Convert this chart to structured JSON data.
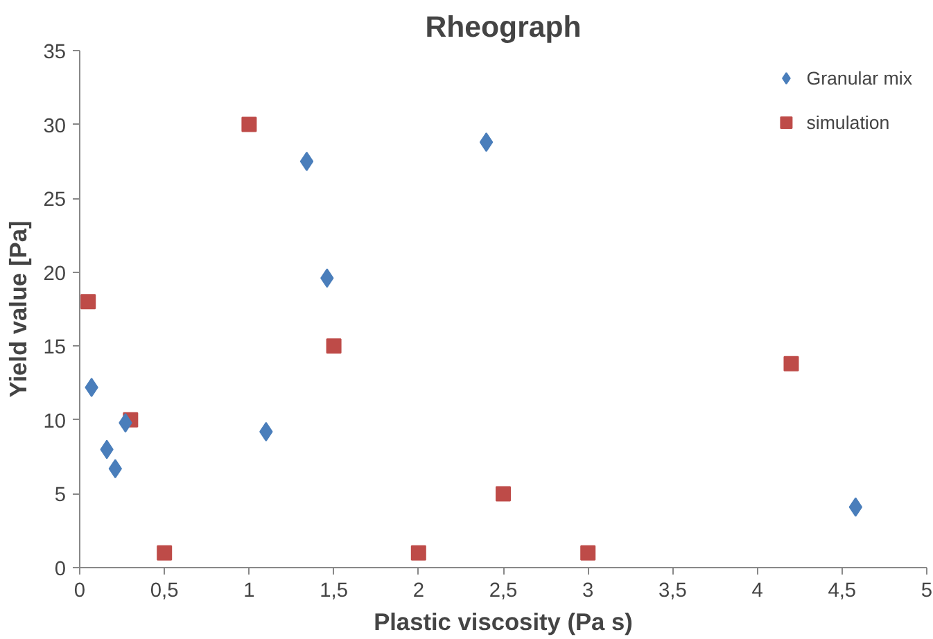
{
  "chart_data": {
    "type": "scatter",
    "title": "Rheograph",
    "xlabel": "Plastic viscosity (Pa s)",
    "ylabel": "Yield value [Pa]",
    "xlim": [
      0,
      5
    ],
    "ylim": [
      0,
      35
    ],
    "xticks": [
      0,
      {
        "value": 0.5,
        "label": "0,5"
      },
      1,
      {
        "value": 1.5,
        "label": "1,5"
      },
      2,
      {
        "value": 2.5,
        "label": "2,5"
      },
      3,
      {
        "value": 3.5,
        "label": "3,5"
      },
      4,
      {
        "value": 4.5,
        "label": "4,5"
      },
      5
    ],
    "yticks": [
      0,
      5,
      10,
      15,
      20,
      25,
      30,
      35
    ],
    "grid": false,
    "legend": "top right",
    "series": [
      {
        "name": "Granular mix",
        "color": "#4a7ebb",
        "marker": "diamond",
        "x": [
          0.07,
          0.16,
          0.21,
          0.27,
          1.1,
          1.34,
          1.46,
          2.4,
          4.58
        ],
        "values": [
          12.2,
          8.0,
          6.7,
          9.8,
          9.2,
          27.5,
          19.6,
          28.8,
          4.1
        ]
      },
      {
        "name": "simulation",
        "color": "#be4b48",
        "marker": "square",
        "x": [
          0.05,
          0.3,
          0.5,
          1,
          1.5,
          2,
          2.5,
          3,
          4.2
        ],
        "values": [
          18,
          10,
          1,
          30,
          15,
          1,
          5,
          1,
          13.8
        ]
      }
    ]
  }
}
